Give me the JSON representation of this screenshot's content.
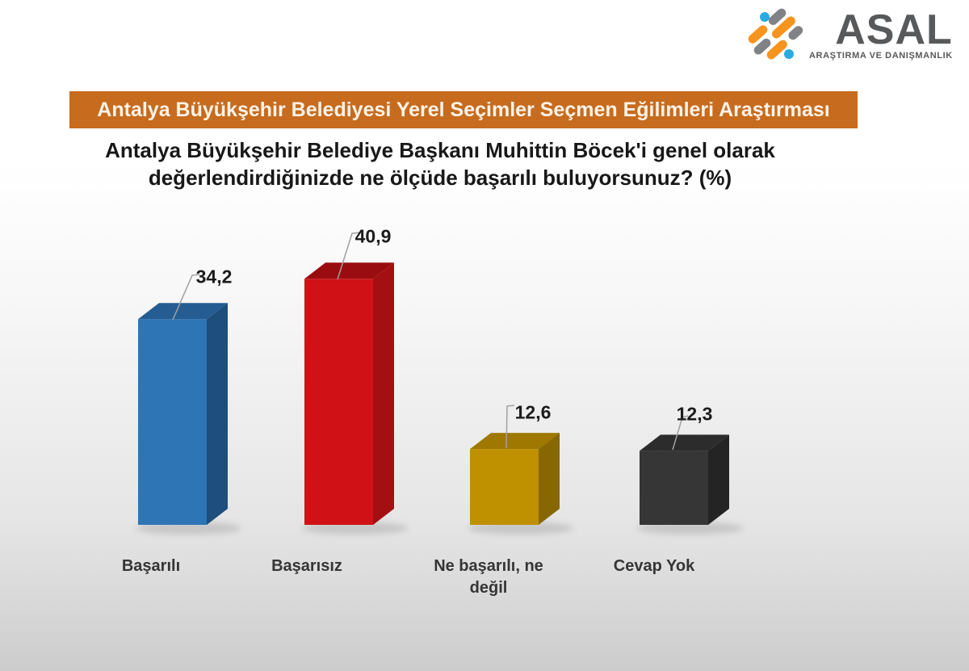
{
  "logo": {
    "name": "ASAL",
    "subtitle": "ARAŞTIRMA VE DANIŞMANLIK",
    "colors": {
      "orange": "#f7941e",
      "blue": "#29abe2",
      "gray": "#808285",
      "text": "#58595b"
    }
  },
  "banner": {
    "text": "Antalya Büyükşehir Belediyesi Yerel Seçimler Seçmen Eğilimleri Araştırması",
    "bg": "#c76b1e",
    "text_color": "#fcf3e8"
  },
  "question": {
    "text": "Antalya Büyükşehir Belediye Başkanı Muhittin Böcek'i genel olarak değerlendirdiğinizde ne ölçüde başarılı buluyorsunuz? (%)"
  },
  "chart_data": {
    "type": "bar",
    "style": "3d-column",
    "title": "Antalya Büyükşehir Belediye Başkanı Muhittin Böcek'i genel olarak değerlendirdiğinizde ne ölçüde başarılı buluyorsunuz? (%)",
    "categories": [
      "Başarılı",
      "Başarısız",
      "Ne başarılı, ne değil",
      "Cevap Yok"
    ],
    "values": [
      34.2,
      40.9,
      12.6,
      12.3
    ],
    "value_labels": [
      "34,2",
      "40,9",
      "12,6",
      "12,3"
    ],
    "unit": "percent",
    "xlabel": "",
    "ylabel": "",
    "ylim": [
      0,
      45
    ],
    "grid": false,
    "legend": false,
    "axes_hidden": true,
    "leader_line_color": "#a0a0a0",
    "bar_colors": [
      {
        "front": "#2e75b6",
        "top": "#255d92",
        "side": "#1e4e7c"
      },
      {
        "front": "#d01116",
        "top": "#990d10",
        "side": "#a30f12"
      },
      {
        "front": "#bf9000",
        "top": "#9e7800",
        "side": "#876700"
      },
      {
        "front": "#363636",
        "top": "#2c2c2c",
        "side": "#242424"
      }
    ]
  }
}
